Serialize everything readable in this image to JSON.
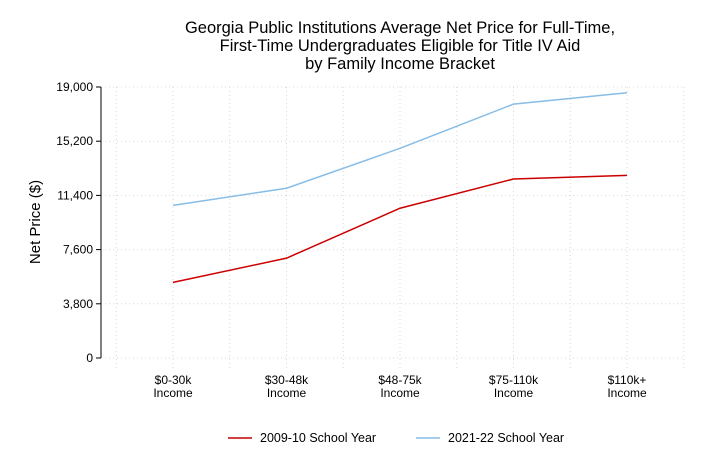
{
  "chart_data": {
    "type": "line",
    "title": "Georgia Public Institutions Average Net Price for Full-Time, First-Time Undergraduates Eligible for Title IV Aid by Family Income Bracket",
    "title_lines": [
      "Georgia Public Institutions Average Net Price for Full-Time,",
      "First-Time Undergraduates Eligible for Title IV Aid",
      "by Family Income Bracket"
    ],
    "xlabel": "",
    "ylabel": "Net Price ($)",
    "categories": [
      "$0-30k Income",
      "$30-48k Income",
      "$48-75k Income",
      "$75-110k Income",
      "$110k+ Income"
    ],
    "category_lines": [
      [
        "$0-30k",
        "Income"
      ],
      [
        "$30-48k",
        "Income"
      ],
      [
        "$48-75k",
        "Income"
      ],
      [
        "$75-110k",
        "Income"
      ],
      [
        "$110k+",
        "Income"
      ]
    ],
    "yticks": [
      0,
      3800,
      7600,
      11400,
      15200,
      19000
    ],
    "ytick_labels": [
      "0",
      "3,800",
      "7,600",
      "11,400",
      "15,200",
      "19,000"
    ],
    "ylim": [
      0,
      19000
    ],
    "grid": true,
    "legend_position": "bottom",
    "series": [
      {
        "name": "2009-10 School Year",
        "color": "#cc0000",
        "values": [
          5300,
          7000,
          10500,
          12550,
          12800
        ]
      },
      {
        "name": "2021-22 School Year",
        "color": "#88bde6",
        "values": [
          10700,
          11900,
          14700,
          17800,
          18600
        ]
      }
    ]
  }
}
